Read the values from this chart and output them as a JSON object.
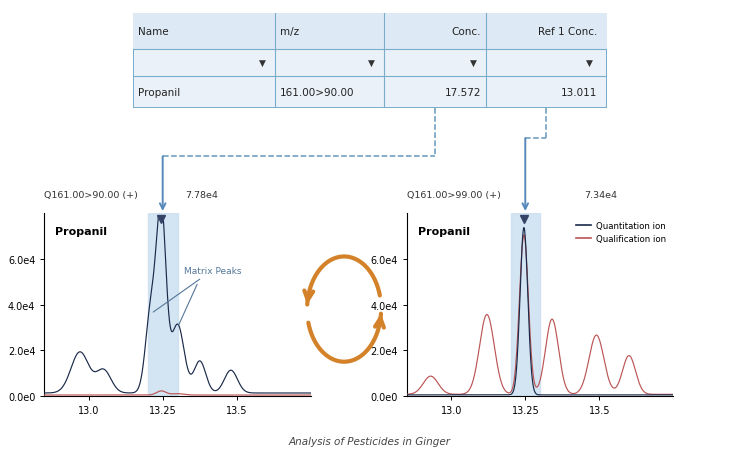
{
  "title": "Analysis of Pesticides in Ginger",
  "table_headers": [
    "Name",
    "m/z",
    "Conc.",
    "Ref 1 Conc."
  ],
  "table_row": [
    "Propanil",
    "161.00>90.00",
    "17.572",
    "13.011"
  ],
  "left_label_top": "Q161.00>90.00 (+)",
  "right_label_top": "Q161.00>99.00 (+)",
  "left_peak_val": "7.78e4",
  "right_peak_val": "7.34e4",
  "left_compound": "Propanil",
  "right_compound": "Propanil",
  "matrix_peaks_label": "Matrix Peaks",
  "legend_quant": "Quantitation ion",
  "legend_qual": "Qualification ion",
  "x_min": 12.85,
  "x_max": 13.75,
  "x_ticks": [
    13.0,
    13.25,
    13.5
  ],
  "y_min": 0,
  "y_max": 80000,
  "y_ticks": [
    0,
    20000,
    40000,
    60000
  ],
  "y_tick_labels": [
    "0.0e0",
    "2.0e4",
    "4.0e4",
    "6.0e4"
  ],
  "peak_x": 13.25,
  "highlight_x1": 13.2,
  "highlight_x2": 13.3,
  "table_bg": "#eaf1f8",
  "table_border": "#7aaccc",
  "table_header_bg": "#ddeaf5",
  "dashed_color": "#6699bb",
  "arrow_color": "#5588bb",
  "highlight_color": "#cce0f0",
  "quant_color": "#1a2a4a",
  "qual_color": "#bb5555",
  "circle_arrow_color": "#d4822a"
}
